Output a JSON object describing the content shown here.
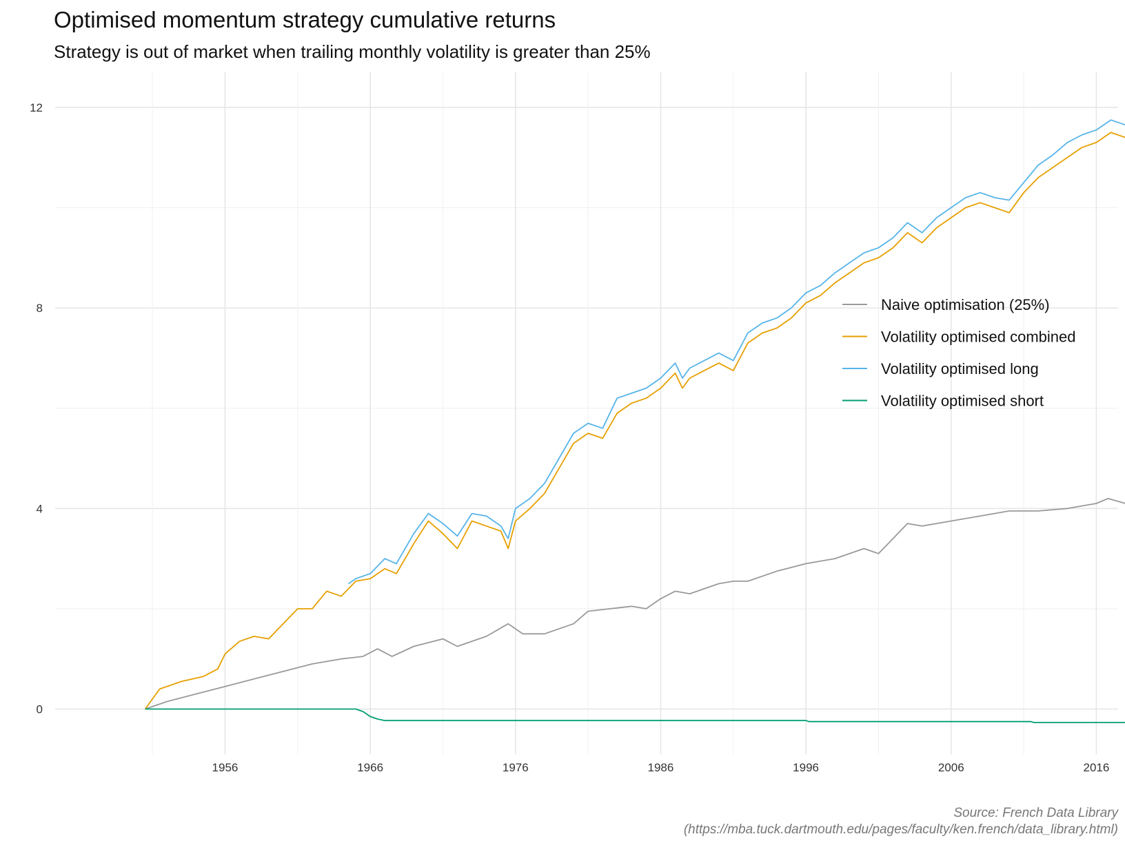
{
  "title": "Optimised momentum strategy cumulative returns",
  "subtitle": "Strategy is out of market when trailing monthly volatility is greater than 25%",
  "caption_line1": "Source: French Data Library",
  "caption_line2": "(https://mba.tuck.dartmouth.edu/pages/faculty/ken.french/data_library.html)",
  "chart_data": {
    "type": "line",
    "x_ticks": [
      1956,
      1966,
      1976,
      1986,
      1996,
      2006,
      2016
    ],
    "y_ticks": [
      0,
      4,
      8,
      12
    ],
    "xlim": [
      1944.3,
      2017.5
    ],
    "ylim": [
      -0.9,
      12.7
    ],
    "grid": true,
    "legend_position": "right",
    "series": [
      {
        "name": "Naive optimisation (25%)",
        "color": "#999999",
        "points": [
          [
            1950.5,
            0
          ],
          [
            1952,
            0.15
          ],
          [
            1954,
            0.3
          ],
          [
            1956,
            0.45
          ],
          [
            1958,
            0.6
          ],
          [
            1960,
            0.75
          ],
          [
            1962,
            0.9
          ],
          [
            1964,
            1.0
          ],
          [
            1965.5,
            1.05
          ],
          [
            1966.5,
            1.2
          ],
          [
            1967.5,
            1.05
          ],
          [
            1969,
            1.25
          ],
          [
            1971,
            1.4
          ],
          [
            1972,
            1.25
          ],
          [
            1974,
            1.45
          ],
          [
            1975.5,
            1.7
          ],
          [
            1976.5,
            1.5
          ],
          [
            1978,
            1.5
          ],
          [
            1980,
            1.7
          ],
          [
            1981,
            1.95
          ],
          [
            1982.5,
            2.0
          ],
          [
            1984,
            2.05
          ],
          [
            1985,
            2.0
          ],
          [
            1986,
            2.2
          ],
          [
            1987,
            2.35
          ],
          [
            1988,
            2.3
          ],
          [
            1990,
            2.5
          ],
          [
            1991,
            2.55
          ],
          [
            1992,
            2.55
          ],
          [
            1994,
            2.75
          ],
          [
            1996,
            2.9
          ],
          [
            1998,
            3.0
          ],
          [
            2000,
            3.2
          ],
          [
            2001,
            3.1
          ],
          [
            2002,
            3.4
          ],
          [
            2003,
            3.7
          ],
          [
            2004,
            3.65
          ],
          [
            2006,
            3.75
          ],
          [
            2008,
            3.85
          ],
          [
            2010,
            3.95
          ],
          [
            2012,
            3.95
          ],
          [
            2014,
            4.0
          ],
          [
            2016,
            4.1
          ],
          [
            2016.8,
            4.2
          ],
          [
            2018,
            4.1
          ],
          [
            2020,
            4.2
          ],
          [
            2021.8,
            4.3
          ],
          [
            2023,
            4.1
          ]
        ]
      },
      {
        "name": "Volatility optimised combined",
        "color": "#E69F00",
        "points": [
          [
            1950.5,
            0
          ],
          [
            1951.5,
            0.4
          ],
          [
            1953,
            0.55
          ],
          [
            1954.5,
            0.65
          ],
          [
            1955.5,
            0.8
          ],
          [
            1956,
            1.1
          ],
          [
            1957,
            1.35
          ],
          [
            1958,
            1.45
          ],
          [
            1959,
            1.4
          ],
          [
            1960,
            1.7
          ],
          [
            1961,
            2.0
          ],
          [
            1962,
            2.0
          ],
          [
            1963,
            2.35
          ],
          [
            1964,
            2.25
          ],
          [
            1965,
            2.55
          ],
          [
            1966,
            2.6
          ],
          [
            1967,
            2.8
          ],
          [
            1967.8,
            2.7
          ],
          [
            1969,
            3.3
          ],
          [
            1970,
            3.75
          ],
          [
            1971,
            3.5
          ],
          [
            1972,
            3.2
          ],
          [
            1973,
            3.75
          ],
          [
            1974,
            3.65
          ],
          [
            1975,
            3.55
          ],
          [
            1975.5,
            3.2
          ],
          [
            1976,
            3.75
          ],
          [
            1977,
            4.0
          ],
          [
            1978,
            4.3
          ],
          [
            1979,
            4.8
          ],
          [
            1980,
            5.3
          ],
          [
            1981,
            5.5
          ],
          [
            1982,
            5.4
          ],
          [
            1983,
            5.9
          ],
          [
            1984,
            6.1
          ],
          [
            1985,
            6.2
          ],
          [
            1986,
            6.4
          ],
          [
            1987,
            6.7
          ],
          [
            1987.5,
            6.4
          ],
          [
            1988,
            6.6
          ],
          [
            1989,
            6.75
          ],
          [
            1990,
            6.9
          ],
          [
            1991,
            6.75
          ],
          [
            1992,
            7.3
          ],
          [
            1993,
            7.5
          ],
          [
            1994,
            7.6
          ],
          [
            1995,
            7.8
          ],
          [
            1996,
            8.1
          ],
          [
            1997,
            8.25
          ],
          [
            1998,
            8.5
          ],
          [
            1999,
            8.7
          ],
          [
            2000,
            8.9
          ],
          [
            2001,
            9.0
          ],
          [
            2002,
            9.2
          ],
          [
            2003,
            9.5
          ],
          [
            2004,
            9.3
          ],
          [
            2005,
            9.6
          ],
          [
            2006,
            9.8
          ],
          [
            2007,
            10.0
          ],
          [
            2008,
            10.1
          ],
          [
            2009,
            10.0
          ],
          [
            2010,
            9.9
          ],
          [
            2011,
            10.3
          ],
          [
            2012,
            10.6
          ],
          [
            2013,
            10.8
          ],
          [
            2014,
            11.0
          ],
          [
            2015,
            11.2
          ],
          [
            2016,
            11.3
          ],
          [
            2017,
            11.5
          ],
          [
            2018,
            11.4
          ],
          [
            2019,
            11.6
          ],
          [
            2020,
            11.7
          ],
          [
            2021,
            11.4
          ],
          [
            2022,
            11.6
          ],
          [
            2022.5,
            11.5
          ],
          [
            2023,
            11.75
          ]
        ]
      },
      {
        "name": "Volatility optimised long",
        "color": "#56B4E9",
        "points": [
          [
            1964.5,
            2.5
          ],
          [
            1965,
            2.6
          ],
          [
            1966,
            2.7
          ],
          [
            1967,
            3.0
          ],
          [
            1967.8,
            2.9
          ],
          [
            1969,
            3.5
          ],
          [
            1970,
            3.9
          ],
          [
            1971,
            3.7
          ],
          [
            1972,
            3.45
          ],
          [
            1973,
            3.9
          ],
          [
            1974,
            3.85
          ],
          [
            1975,
            3.65
          ],
          [
            1975.5,
            3.4
          ],
          [
            1976,
            4.0
          ],
          [
            1977,
            4.2
          ],
          [
            1978,
            4.5
          ],
          [
            1979,
            5.0
          ],
          [
            1980,
            5.5
          ],
          [
            1981,
            5.7
          ],
          [
            1982,
            5.6
          ],
          [
            1983,
            6.2
          ],
          [
            1984,
            6.3
          ],
          [
            1985,
            6.4
          ],
          [
            1986,
            6.6
          ],
          [
            1987,
            6.9
          ],
          [
            1987.5,
            6.6
          ],
          [
            1988,
            6.8
          ],
          [
            1989,
            6.95
          ],
          [
            1990,
            7.1
          ],
          [
            1991,
            6.95
          ],
          [
            1992,
            7.5
          ],
          [
            1993,
            7.7
          ],
          [
            1994,
            7.8
          ],
          [
            1995,
            8.0
          ],
          [
            1996,
            8.3
          ],
          [
            1997,
            8.45
          ],
          [
            1998,
            8.7
          ],
          [
            1999,
            8.9
          ],
          [
            2000,
            9.1
          ],
          [
            2001,
            9.2
          ],
          [
            2002,
            9.4
          ],
          [
            2003,
            9.7
          ],
          [
            2004,
            9.5
          ],
          [
            2005,
            9.8
          ],
          [
            2006,
            10.0
          ],
          [
            2007,
            10.2
          ],
          [
            2008,
            10.3
          ],
          [
            2009,
            10.2
          ],
          [
            2010,
            10.15
          ],
          [
            2011,
            10.5
          ],
          [
            2012,
            10.85
          ],
          [
            2013,
            11.05
          ],
          [
            2014,
            11.3
          ],
          [
            2015,
            11.45
          ],
          [
            2016,
            11.55
          ],
          [
            2017,
            11.75
          ],
          [
            2018,
            11.65
          ],
          [
            2019,
            11.85
          ],
          [
            2020,
            11.95
          ],
          [
            2021,
            11.65
          ],
          [
            2022,
            11.85
          ],
          [
            2022.5,
            11.75
          ],
          [
            2023,
            12.05
          ]
        ]
      },
      {
        "name": "Volatility optimised short",
        "color": "#009E73",
        "points": [
          [
            1950.5,
            0
          ],
          [
            1965,
            0
          ],
          [
            1965.5,
            -0.05
          ],
          [
            1966,
            -0.15
          ],
          [
            1966.5,
            -0.2
          ],
          [
            1967,
            -0.23
          ],
          [
            1996,
            -0.23
          ],
          [
            1996.2,
            -0.25
          ],
          [
            2011.5,
            -0.25
          ],
          [
            2011.7,
            -0.27
          ],
          [
            2018.5,
            -0.27
          ],
          [
            2019,
            -0.32
          ],
          [
            2023,
            -0.32
          ]
        ]
      }
    ]
  }
}
